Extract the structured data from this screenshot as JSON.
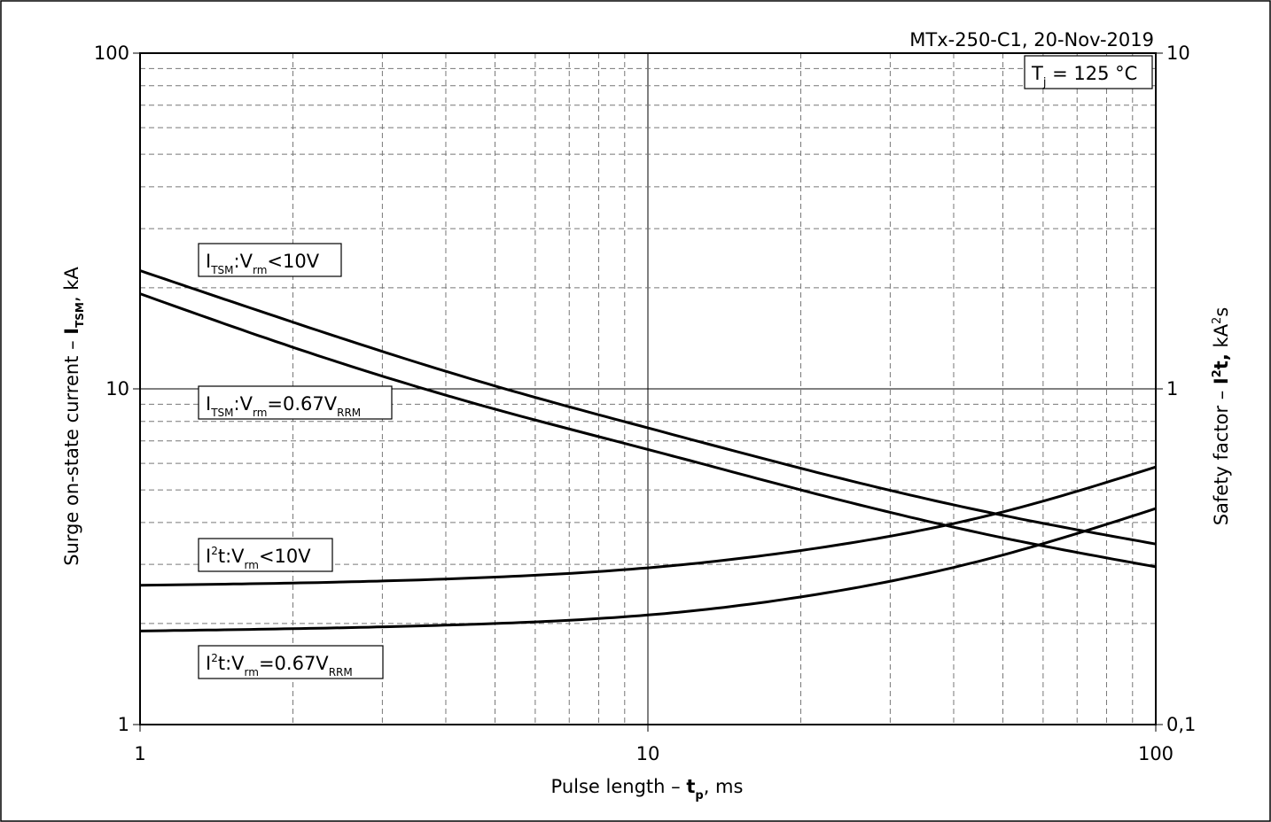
{
  "header": {
    "text": "MTx-250-C1, 20-Nov-2019",
    "condition": "T",
    "condition_sub": "j",
    "condition_value": " = 125 °C"
  },
  "axes": {
    "x_title": "Pulse length –",
    "x_sym": "t",
    "x_sub": "p",
    "x_unit": ", ms",
    "y_left_title": "Surge on-state current –",
    "y_left_sym": "I",
    "y_left_sub": "TSM",
    "y_left_unit": ", kA",
    "y_right_title": "Safety factor –",
    "y_right_sym": "I",
    "y_right_sup": "2",
    "y_right_sym2": "t,",
    "y_right_unit": "kA",
    "y_right_unit_sup": "2",
    "y_right_unit_tail": "s"
  },
  "chart_data": {
    "type": "line",
    "x_scale": "log",
    "y_scale": "log",
    "xlim": [
      1,
      100
    ],
    "ylim_left": [
      1,
      100
    ],
    "ylim_right": [
      0.1,
      10
    ],
    "x_ticks": [
      "1",
      "10",
      "100"
    ],
    "y_left_ticks": [
      "1",
      "10",
      "100"
    ],
    "y_right_ticks": [
      "0,1",
      "1",
      "10"
    ],
    "grid": true,
    "series": [
      {
        "name": "I_TSM: V_rm < 10V",
        "axis": "left",
        "label_parts": [
          "I",
          "TSM",
          ":V",
          "rm",
          "<10V",
          ""
        ],
        "x": [
          1,
          2,
          5,
          10,
          20,
          50,
          100
        ],
        "y": [
          22.5,
          15.8,
          10.2,
          7.65,
          5.8,
          4.2,
          3.45
        ]
      },
      {
        "name": "I_TSM: V_rm = 0.67V_RRM",
        "axis": "left",
        "label_parts": [
          "I",
          "TSM",
          ":V",
          "rm",
          "=0.67V",
          "RRM"
        ],
        "x": [
          1,
          2,
          5,
          10,
          20,
          50,
          100
        ],
        "y": [
          19.2,
          13.3,
          8.7,
          6.6,
          5.0,
          3.6,
          2.95
        ]
      },
      {
        "name": "I²t: V_rm < 10V",
        "axis": "right",
        "label_parts": [
          "I",
          "2",
          "t:V",
          "rm",
          "<10V",
          ""
        ],
        "x": [
          1,
          2,
          5,
          10,
          20,
          50,
          100
        ],
        "y": [
          0.26,
          0.264,
          0.275,
          0.293,
          0.33,
          0.43,
          0.585
        ]
      },
      {
        "name": "I²t: V_rm = 0.67V_RRM",
        "axis": "right",
        "label_parts": [
          "I",
          "2",
          "t:V",
          "rm",
          "=0.67V",
          "RRM"
        ],
        "x": [
          1,
          2,
          5,
          10,
          20,
          50,
          100
        ],
        "y": [
          0.19,
          0.193,
          0.2,
          0.212,
          0.24,
          0.32,
          0.44
        ]
      }
    ]
  }
}
